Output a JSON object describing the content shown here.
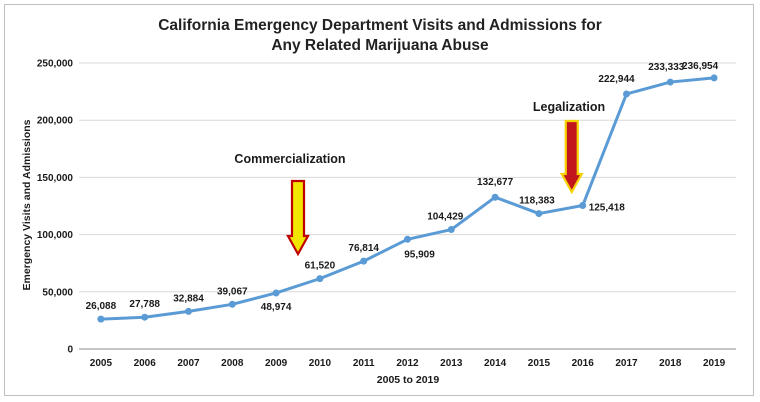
{
  "chart_data": {
    "type": "line",
    "title_line1": "California Emergency Department Visits and Admissions for",
    "title_line2": "Any Related Marijuana Abuse",
    "xlabel": "2005 to 2019",
    "ylabel": "Emergency Visits and Admissions",
    "ylim": [
      0,
      250000
    ],
    "yticks": [
      0,
      50000,
      100000,
      150000,
      200000,
      250000
    ],
    "ytick_labels": [
      "0",
      "50,000",
      "100,000",
      "150,000",
      "200,000",
      "250,000"
    ],
    "grid": true,
    "categories": [
      "2005",
      "2006",
      "2007",
      "2008",
      "2009",
      "2010",
      "2011",
      "2012",
      "2013",
      "2014",
      "2015",
      "2016",
      "2017",
      "2018",
      "2019"
    ],
    "series": [
      {
        "name": "Emergency Visits and Admissions",
        "color": "#5b9bd5",
        "values": [
          26088,
          27788,
          32884,
          39067,
          48974,
          61520,
          76814,
          95909,
          104429,
          132677,
          118383,
          125418,
          222944,
          233333,
          236954
        ],
        "labels": [
          "26,088",
          "27,788",
          "32,884",
          "39,067",
          "48,974",
          "61,520",
          "76,814",
          "95,909",
          "104,429",
          "132,677",
          "118,383",
          "125,418",
          "222,944",
          "233,333",
          "236,954"
        ]
      }
    ],
    "annotations": [
      {
        "text": "Commercialization",
        "at_category_index": 4.5,
        "arrow_fill": "#f2e600",
        "arrow_outline": "#c00000"
      },
      {
        "text": "Legalization",
        "at_category_index": 10.75,
        "arrow_fill": "#c0161c",
        "arrow_outline": "#f5d300"
      }
    ]
  }
}
